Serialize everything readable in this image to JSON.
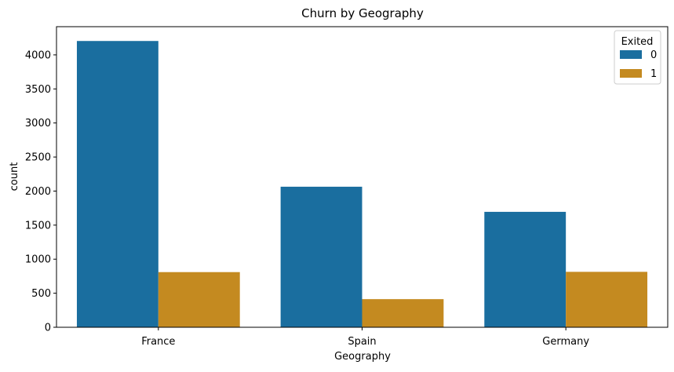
{
  "chart_data": {
    "type": "bar",
    "title": "Churn by Geography",
    "xlabel": "Geography",
    "ylabel": "count",
    "categories": [
      "France",
      "Spain",
      "Germany"
    ],
    "series": [
      {
        "name": "0",
        "values": [
          4204,
          2064,
          1695
        ],
        "color": "#1a6e9f"
      },
      {
        "name": "1",
        "values": [
          810,
          413,
          814
        ],
        "color": "#c48a20"
      }
    ],
    "ylim": [
      0,
      4414
    ],
    "yticks": [
      0,
      500,
      1000,
      1500,
      2000,
      2500,
      3000,
      3500,
      4000
    ],
    "legend": {
      "title": "Exited",
      "position": "top-right"
    },
    "grid": false
  }
}
